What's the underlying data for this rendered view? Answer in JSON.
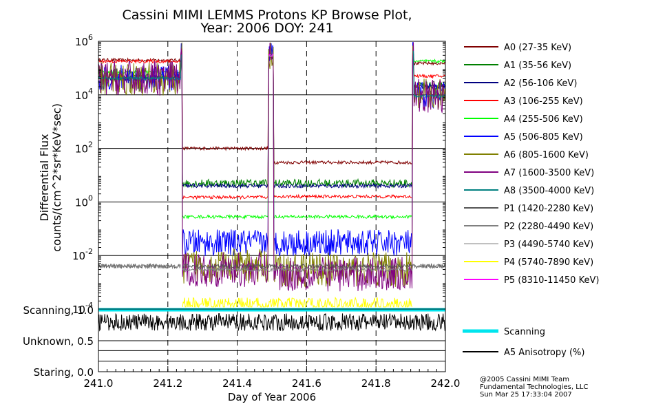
{
  "chart_data": {
    "type": "line",
    "title": "Cassini MIMI LEMMS Protons KP Browse Plot,",
    "subtitle": "Year: 2006 DOY: 241",
    "xlabel": "Day of Year 2006",
    "ylabel_line1": "Differential Flux",
    "ylabel_line2": "counts/(cm^2*sr*KeV*sec)",
    "xlim": [
      241.0,
      242.0
    ],
    "xticks": [
      "241.0",
      "241.2",
      "241.4",
      "241.6",
      "241.8",
      "242.0"
    ],
    "y_log": true,
    "ylim": [
      0.0001,
      1000000
    ],
    "yticks": [
      {
        "base": "10",
        "exp": "6",
        "value": 1000000
      },
      {
        "base": "10",
        "exp": "4",
        "value": 10000
      },
      {
        "base": "10",
        "exp": "2",
        "value": 100
      },
      {
        "base": "10",
        "exp": "0",
        "value": 1
      },
      {
        "base": "10",
        "exp": "-2",
        "value": 0.01
      },
      {
        "base": "10",
        "exp": "-4",
        "value": 0.0001
      }
    ],
    "vertical_dashed_lines_x": [
      241.2,
      241.4,
      241.6,
      241.8
    ],
    "grid": "horizontal at each labelled decade",
    "legend_position": "right",
    "series": [
      {
        "name": "A0 (27-35 KeV)",
        "color": "#800000"
      },
      {
        "name": "A1 (35-56 KeV)",
        "color": "#008000"
      },
      {
        "name": "A2 (56-106 KeV)",
        "color": "#000080"
      },
      {
        "name": "A3 (106-255 KeV)",
        "color": "#ff0000"
      },
      {
        "name": "A4 (255-506 KeV)",
        "color": "#00ff00"
      },
      {
        "name": "A5 (506-805 KeV)",
        "color": "#0000ff"
      },
      {
        "name": "A6 (805-1600 KeV)",
        "color": "#808000"
      },
      {
        "name": "A7 (1600-3500 KeV)",
        "color": "#800080"
      },
      {
        "name": "A8 (3500-4000 KeV)",
        "color": "#008080"
      },
      {
        "name": "P1 (1420-2280 KeV)",
        "color": "#555555"
      },
      {
        "name": "P2 (2280-4490 KeV)",
        "color": "#808080"
      },
      {
        "name": "P3 (4490-5740 KeV)",
        "color": "#c0c0c0"
      },
      {
        "name": "P4 (5740-7890 KeV)",
        "color": "#ffff00"
      },
      {
        "name": "P5 (8310-11450 KeV)",
        "color": "#ff00ff"
      }
    ],
    "lower_panel": {
      "y_labels": [
        "Scanning, 1.0",
        "Unknown, 0.5",
        "Staring, 0.0"
      ],
      "ylim": [
        0.0,
        1.0
      ],
      "series": [
        {
          "name": "Scanning",
          "color": "#00e5ee",
          "value": 1.0
        },
        {
          "name": "A5 Anisotropy (%)",
          "color": "#000000",
          "approx_mean": 0.8
        }
      ]
    }
  },
  "credits": [
    "@2005 Cassini MIMI Team",
    "Fundamental Technologies, LLC",
    "Sun Mar 25 17:33:04 2007"
  ]
}
